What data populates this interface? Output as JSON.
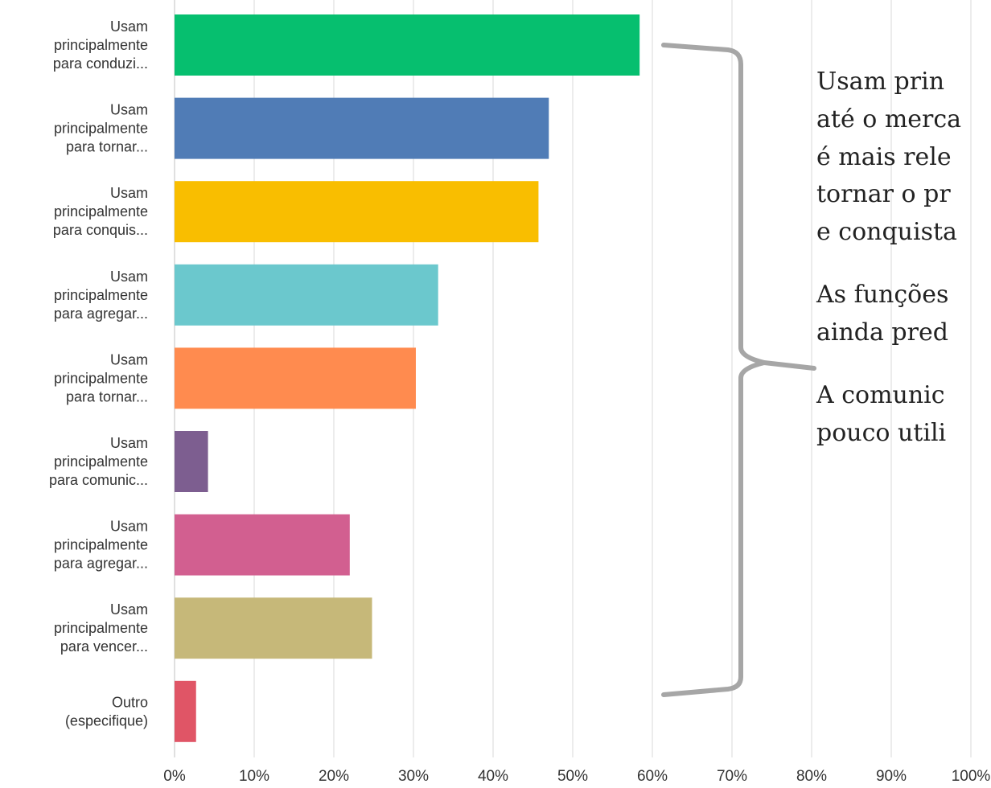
{
  "chart_data": {
    "type": "bar",
    "orientation": "horizontal",
    "xlim": [
      0,
      100
    ],
    "x_ticks": [
      "0%",
      "10%",
      "20%",
      "30%",
      "40%",
      "50%",
      "60%",
      "70%",
      "80%",
      "90%",
      "100%"
    ],
    "grid": true,
    "categories": [
      [
        "Usam",
        "principalmente",
        "para conduzi..."
      ],
      [
        "Usam",
        "principalmente",
        "para tornar..."
      ],
      [
        "Usam",
        "principalmente",
        "para conquis..."
      ],
      [
        "Usam",
        "principalmente",
        "para agregar..."
      ],
      [
        "Usam",
        "principalmente",
        "para tornar..."
      ],
      [
        "Usam",
        "principalmente",
        "para comunic..."
      ],
      [
        "Usam",
        "principalmente",
        "para agregar..."
      ],
      [
        "Usam",
        "principalmente",
        "para vencer..."
      ],
      [
        "Outro",
        "(especifique)"
      ]
    ],
    "values": [
      58.4,
      47.0,
      45.7,
      33.1,
      30.3,
      4.2,
      22.0,
      24.8,
      2.7
    ],
    "colors": [
      "#06bf6f",
      "#507cb6",
      "#f9be00",
      "#6bc8cd",
      "#ff8b4f",
      "#7d5e90",
      "#d25f90",
      "#c6b879",
      "#e05566"
    ]
  },
  "annotation": {
    "lines": [
      "Usam prin",
      "até o merca",
      "é mais rele",
      "tornar o pr",
      "e conquista",
      "",
      "As funções",
      "ainda pred",
      "",
      "A comunic",
      "pouco utili"
    ],
    "bracket_color": "#a6a6a6"
  }
}
